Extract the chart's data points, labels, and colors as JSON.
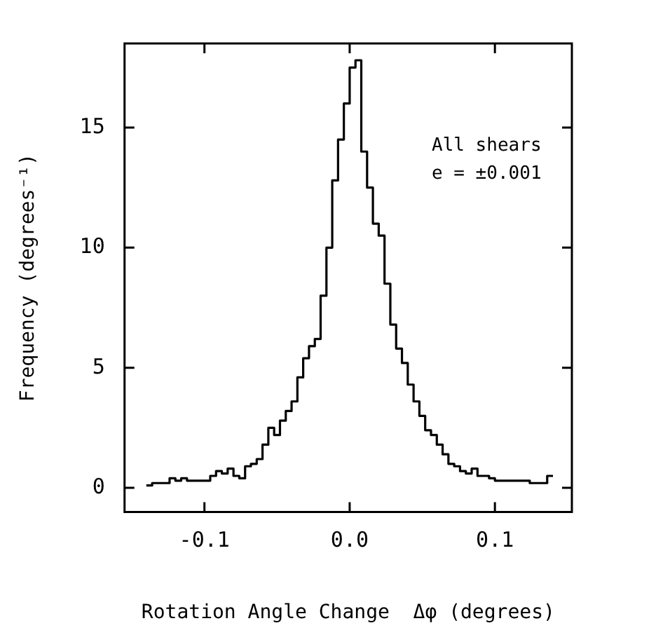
{
  "chart_data": {
    "type": "histogram",
    "xlabel": "Rotation Angle Change  Δφ (degrees)",
    "ylabel": "Frequency (degrees⁻¹)",
    "annotations": [
      "All shears",
      "e = ±0.001"
    ],
    "bins": [
      -0.14,
      -0.136,
      -0.132,
      -0.128,
      -0.124,
      -0.12,
      -0.116,
      -0.112,
      -0.108,
      -0.104,
      -0.1,
      -0.096,
      -0.092,
      -0.088,
      -0.084,
      -0.08,
      -0.076,
      -0.072,
      -0.068,
      -0.064,
      -0.06,
      -0.056,
      -0.052,
      -0.048,
      -0.044,
      -0.04,
      -0.036,
      -0.032,
      -0.028,
      -0.024,
      -0.02,
      -0.016,
      -0.012,
      -0.008,
      -0.004,
      0,
      0.004,
      0.008,
      0.012,
      0.016,
      0.02,
      0.024,
      0.028,
      0.032,
      0.036,
      0.04,
      0.044,
      0.048,
      0.052,
      0.056,
      0.06,
      0.064,
      0.068,
      0.072,
      0.076,
      0.08,
      0.084,
      0.088,
      0.092,
      0.096,
      0.1,
      0.104,
      0.108,
      0.112,
      0.116,
      0.12,
      0.124,
      0.128,
      0.132,
      0.136,
      0.14
    ],
    "values": [
      0.1,
      0.2,
      0.2,
      0.2,
      0.4,
      0.3,
      0.4,
      0.3,
      0.3,
      0.3,
      0.3,
      0.5,
      0.7,
      0.6,
      0.8,
      0.5,
      0.4,
      0.9,
      1.0,
      1.2,
      1.8,
      2.5,
      2.2,
      2.8,
      3.2,
      3.6,
      4.6,
      5.4,
      5.9,
      6.2,
      8.0,
      10.0,
      12.8,
      14.5,
      16.0,
      17.5,
      17.8,
      14.0,
      12.5,
      11.0,
      10.5,
      8.5,
      6.8,
      5.8,
      5.2,
      4.3,
      3.6,
      3.0,
      2.4,
      2.2,
      1.8,
      1.4,
      1.0,
      0.9,
      0.7,
      0.6,
      0.8,
      0.5,
      0.5,
      0.4,
      0.3,
      0.3,
      0.3,
      0.3,
      0.3,
      0.3,
      0.2,
      0.2,
      0.2,
      0.5
    ],
    "color": "#000000",
    "xlim": [
      -0.155,
      0.153
    ],
    "ylim": [
      -1,
      18.5
    ],
    "xticks": [
      {
        "value": -0.1,
        "label": "-0.1"
      },
      {
        "value": 0,
        "label": "0.0"
      },
      {
        "value": 0.1,
        "label": "0.1"
      }
    ],
    "yticks": [
      0,
      5,
      10,
      15
    ],
    "grid": false,
    "legend": false
  }
}
